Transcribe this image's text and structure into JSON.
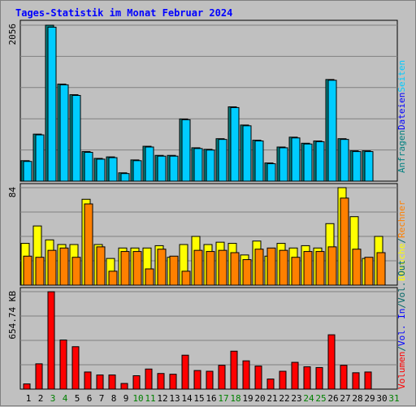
{
  "chart_data": {
    "type": "bar",
    "title": "Tages-Statistik im Monat Februar 2024",
    "days": [
      "1",
      "2",
      "3",
      "4",
      "5",
      "6",
      "7",
      "8",
      "9",
      "10",
      "11",
      "12",
      "13",
      "14",
      "15",
      "16",
      "17",
      "18",
      "19",
      "20",
      "21",
      "22",
      "23",
      "24",
      "25",
      "26",
      "27",
      "28",
      "29",
      "30",
      "31"
    ],
    "weekend_days": [
      "3",
      "4",
      "10",
      "11",
      "17",
      "18",
      "24",
      "25",
      "31"
    ],
    "panels": [
      {
        "name": "top",
        "max_label": "2056",
        "ymax": 2056,
        "series": [
          {
            "name": "Anfragen",
            "color": "#008080",
            "values": [
              270,
              620,
              2056,
              1280,
              1140,
              390,
              300,
              320,
              110,
              280,
              460,
              340,
              340,
              820,
              440,
              420,
              560,
              980,
              740,
              540,
              240,
              450,
              580,
              500,
              530,
              1340,
              560,
              400,
              400,
              null,
              null
            ]
          },
          {
            "name": "Dateien",
            "color": "#00ccff",
            "values": [
              260,
              610,
              2030,
              1270,
              1130,
              380,
              290,
              310,
              100,
              270,
              450,
              330,
              330,
              810,
              430,
              410,
              550,
              970,
              730,
              530,
              230,
              440,
              570,
              490,
              520,
              1330,
              550,
              390,
              390,
              null,
              null
            ]
          }
        ],
        "side_labels": [
          {
            "text": "Anfragen",
            "color": "#008080"
          },
          {
            "text": "Dateien",
            "color": "#0000ff"
          },
          {
            "text": "Seiten",
            "color": "#00ccff"
          }
        ]
      },
      {
        "name": "middle",
        "max_label": "84",
        "ymax": 84,
        "series": [
          {
            "name": "Besuche",
            "color": "#ffff00",
            "values": [
              36,
              51,
              39,
              35,
              35,
              74,
              35,
              23,
              32,
              32,
              32,
              34,
              24,
              35,
              42,
              35,
              37,
              36,
              26,
              38,
              25,
              36,
              32,
              34,
              32,
              53,
              84,
              59,
              23,
              42,
              null
            ]
          },
          {
            "name": "Rechner",
            "color": "#ff8000",
            "values": [
              25,
              24,
              30,
              32,
              24,
              70,
              33,
              12,
              29,
              29,
              14,
              31,
              25,
              12,
              30,
              29,
              30,
              28,
              22,
              31,
              32,
              30,
              24,
              29,
              29,
              33,
              75,
              31,
              24,
              28,
              null
            ]
          }
        ],
        "side_labels": [
          {
            "text": "Besuche",
            "color": "#ffff00"
          },
          {
            "text": "/",
            "color": "#006666"
          },
          {
            "text": "Rechner",
            "color": "#ff8000"
          }
        ]
      },
      {
        "name": "bottom",
        "max_label": "654.74 KB",
        "ymax": 654.74,
        "series": [
          {
            "name": "Volumen",
            "color": "#ff0000",
            "values": [
              35,
              170,
              654,
              330,
              285,
              115,
              95,
              95,
              38,
              90,
              135,
              105,
              100,
              228,
              125,
              120,
              160,
              255,
              190,
              155,
              68,
              120,
              180,
              150,
              145,
              365,
              160,
              110,
              115,
              null,
              null
            ]
          }
        ],
        "side_labels": [
          {
            "text": "Volumen",
            "color": "#ff0000"
          },
          {
            "text": "/",
            "color": "#006666"
          },
          {
            "text": "Vol. In",
            "color": "#0000ff"
          },
          {
            "text": "/",
            "color": "#006666"
          },
          {
            "text": "Vol. Out",
            "color": "#006666"
          }
        ]
      }
    ]
  },
  "colors": {
    "title": "#0000ff",
    "plot_bg": "#c0c0c0",
    "grid": "#808080",
    "bar_outline": "#000000",
    "weekday_label": "#000000",
    "weekend_label": "#008000"
  }
}
